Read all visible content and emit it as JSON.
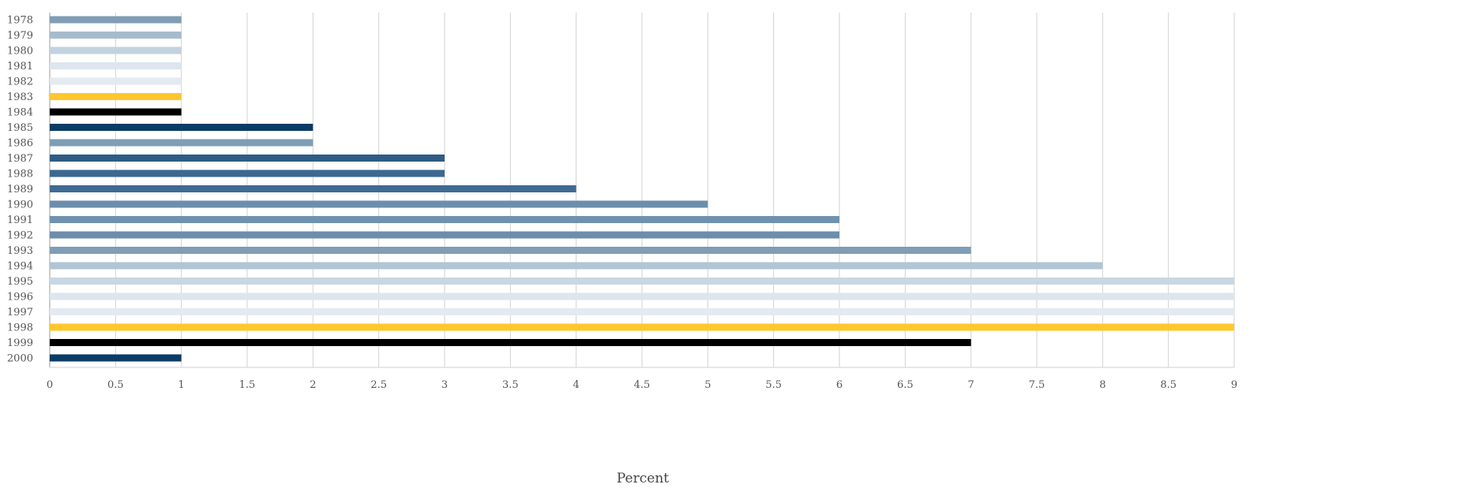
{
  "chart_data": {
    "type": "bar",
    "orientation": "horizontal",
    "categories": [
      "1978",
      "1979",
      "1980",
      "1981",
      "1982",
      "1983",
      "1984",
      "1985",
      "1986",
      "1987",
      "1988",
      "1989",
      "1990",
      "1991",
      "1992",
      "1993",
      "1994",
      "1995",
      "1996",
      "1997",
      "1998",
      "1999",
      "2000"
    ],
    "values": [
      1,
      1,
      1,
      1,
      1,
      1,
      1,
      2,
      2,
      3,
      3,
      4,
      5,
      6,
      6,
      7,
      8,
      9,
      9,
      9,
      9,
      7,
      1
    ],
    "bar_colors": [
      "#7f9db5",
      "#a6bccd",
      "#c2d2de",
      "#dde6ee",
      "#e3eaf1",
      "#ffc72c",
      "#000000",
      "#0a3c66",
      "#7f9db5",
      "#2f5c84",
      "#3d6890",
      "#3f6b93",
      "#6c8eac",
      "#7092af",
      "#6c8eac",
      "#7f9db5",
      "#b1c5d6",
      "#c8d7e3",
      "#dde6ee",
      "#e3eaf1",
      "#ffc72c",
      "#000000",
      "#0a3c66"
    ],
    "xlabel": "Percent",
    "ylabel": "",
    "xlim": [
      0,
      9
    ],
    "x_ticks": [
      "0",
      "0.5",
      "1",
      "1.5",
      "2",
      "2.5",
      "3",
      "3.5",
      "4",
      "4.5",
      "5",
      "5.5",
      "6",
      "6.5",
      "7",
      "7.5",
      "8",
      "8.5",
      "9"
    ],
    "grid": "vertical",
    "legend": "none"
  }
}
